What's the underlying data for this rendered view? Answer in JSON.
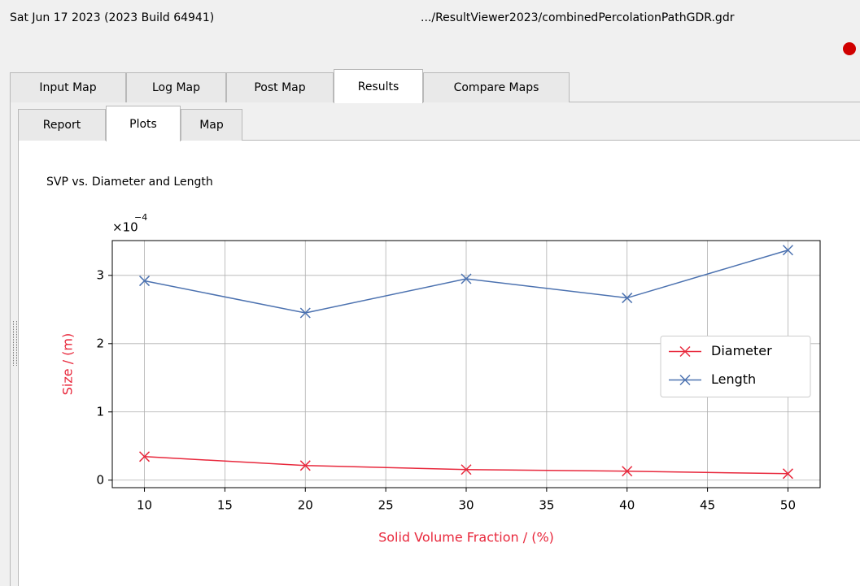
{
  "header": {
    "date": "Sat Jun 17 2023 (2023 Build 64941)",
    "path": ".../ResultViewer2023/combinedPercolationPathGDR.gdr"
  },
  "tabs": {
    "main": [
      "Input Map",
      "Log Map",
      "Post Map",
      "Results",
      "Compare Maps"
    ],
    "main_selected": 3,
    "sub": [
      "Report",
      "Plots",
      "Map"
    ],
    "sub_selected": 1
  },
  "chart_data": {
    "type": "line",
    "title": "SVP vs. Diameter and Length",
    "x_label": "Solid Volume Fraction / (%)",
    "y_label": "Size / (m)",
    "offset_label": "×10",
    "offset_exponent": "−4",
    "x": [
      10,
      20,
      30,
      40,
      50
    ],
    "series": [
      {
        "name": "Diameter",
        "color": "#e8283c",
        "values": [
          3.45e-05,
          2.14e-05,
          1.55e-05,
          1.31e-05,
          9.5e-06
        ]
      },
      {
        "name": "Length",
        "color": "#4c72b0",
        "values": [
          0.000292,
          0.000245,
          0.000295,
          0.000267,
          0.000337
        ]
      }
    ],
    "xlim": [
      8,
      52
    ],
    "xticks": [
      10,
      15,
      20,
      25,
      30,
      35,
      40,
      45,
      50
    ],
    "ylim": [
      -1.1e-05,
      0.000351
    ],
    "yticks": [
      0,
      {
        "value": 0.0001,
        "label": "1"
      },
      {
        "value": 0.0002,
        "label": "2"
      },
      {
        "value": 0.0003,
        "label": "3"
      }
    ],
    "grid": true,
    "legend": "center right",
    "label_color": "#e8283c",
    "marker": "x"
  }
}
